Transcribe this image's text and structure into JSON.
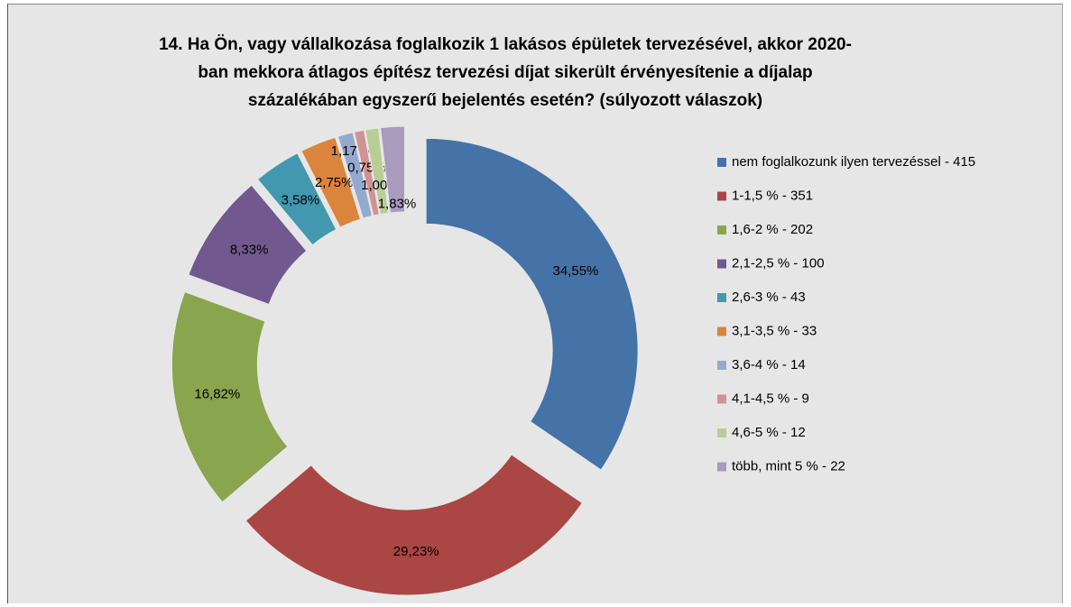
{
  "chart_data": {
    "type": "donut",
    "title": "14. Ha Ön, vagy vállalkozása foglalkozik 1 lakásos épületek tervezésével, akkor 2020-ban mekkora átlagos építész tervezési díjat sikerült érvényesítenie a díjalap százalékában egyszerű bejelentés esetén? (súlyozott válaszok)",
    "categories": [
      "nem foglalkozunk ilyen tervezéssel - 415",
      "1-1,5 % - 351",
      "1,6-2 % - 202",
      "2,1-2,5 % - 100",
      "2,6-3 % - 43",
      "3,1-3,5 % - 33",
      "3,6-4 % - 14",
      "4,1-4,5 % - 9",
      "4,6-5 % - 12",
      "több, mint 5 % - 22"
    ],
    "values": [
      34.55,
      29.23,
      16.82,
      8.33,
      3.58,
      2.75,
      1.17,
      0.75,
      1.0,
      1.83
    ],
    "value_labels": [
      "34,55%",
      "29,23%",
      "16,82%",
      "8,33%",
      "3,58%",
      "2,75%",
      "1,17%",
      "0,75%",
      "1,00%",
      "1,83%"
    ],
    "colors": [
      "#4572a7",
      "#aa4643",
      "#89a54e",
      "#71588f",
      "#4198af",
      "#db843d",
      "#93a9cf",
      "#d19392",
      "#b9cd96",
      "#a99bbd"
    ],
    "legend": "right"
  }
}
